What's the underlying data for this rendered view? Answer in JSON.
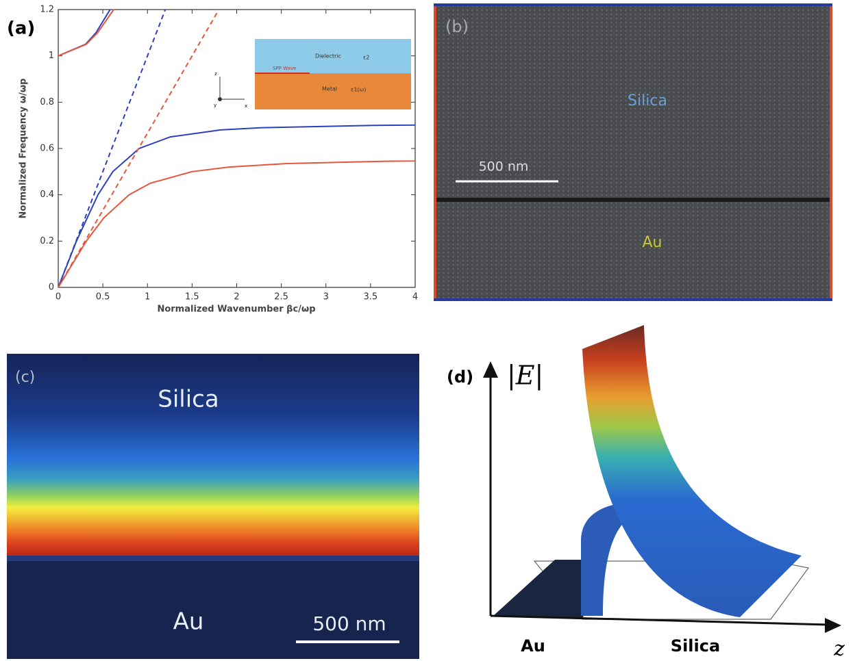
{
  "chart_data": {
    "type": "line",
    "panel_label": "(a)",
    "xlabel": "Normalized Wavenumber βc/ωp",
    "ylabel": "Normalized Frequency ω/ωp",
    "xlim": [
      0,
      4
    ],
    "ylim": [
      0,
      1.2
    ],
    "xticks": [
      0,
      0.5,
      1,
      1.5,
      2,
      2.5,
      3,
      3.5,
      4
    ],
    "yticks": [
      0,
      0.2,
      0.4,
      0.6,
      0.8,
      1,
      1.2
    ],
    "series": [
      {
        "color": "#2b3fbf",
        "style": "solid",
        "x": [
          0,
          0.204,
          0.445,
          0.612,
          0.907,
          1.255,
          1.818,
          2.284,
          3.535,
          4
        ],
        "values": [
          0,
          0.2,
          0.4,
          0.5,
          0.6,
          0.65,
          0.68,
          0.69,
          0.7,
          0.7015
        ]
      },
      {
        "color": "#e8553a",
        "style": "solid",
        "x": [
          0,
          0.315,
          0.51,
          0.794,
          1.031,
          1.5,
          1.914,
          2.566,
          3.68,
          4
        ],
        "values": [
          0,
          0.2,
          0.3,
          0.4,
          0.45,
          0.5,
          0.52,
          0.535,
          0.545,
          0.546
        ]
      },
      {
        "color": "#2b3fbf",
        "style": "solid",
        "x": [
          0,
          0.306,
          0.423,
          0.581
        ],
        "values": [
          1,
          1.05,
          1.1,
          1.2
        ]
      },
      {
        "color": "#e8553a",
        "style": "solid",
        "x": [
          0,
          0.314,
          0.441,
          0.622
        ],
        "values": [
          1,
          1.05,
          1.1,
          1.2
        ]
      },
      {
        "color": "#2b3fbf",
        "style": "dashed",
        "x": [
          0,
          1.2
        ],
        "values": [
          0,
          1.2
        ]
      },
      {
        "color": "#e8553a",
        "style": "dashed",
        "x": [
          0,
          1.8
        ],
        "values": [
          0,
          1.2
        ]
      }
    ],
    "inset": {
      "dielectric": "Dielectric",
      "dielectric_eps": "ε2",
      "metal": "Metal",
      "metal_eps": "ε1(ω)",
      "wave": "SPP Wave",
      "axis_z": "z",
      "axis_x": "x",
      "axis_y": "y"
    }
  },
  "panel_b": {
    "label": "(b)",
    "upper": "Silica",
    "lower": "Au",
    "scale_bar": "500 nm"
  },
  "panel_c": {
    "label": "(c)",
    "upper": "Silica",
    "lower": "Au",
    "scale_bar": "500 nm"
  },
  "panel_d": {
    "label": "(d)",
    "y_axis": "|E|",
    "left": "Au",
    "right": "Silica",
    "x_axis": "z"
  }
}
